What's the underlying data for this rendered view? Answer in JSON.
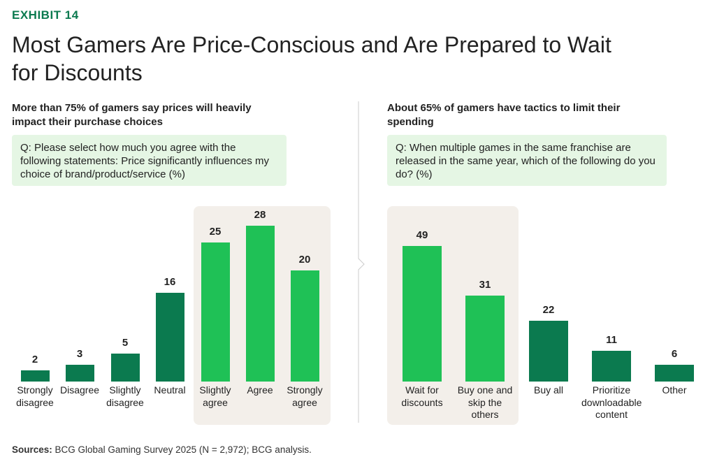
{
  "exhibit": "EXHIBIT 14",
  "title": "Most Gamers Are Price-Conscious and Are Prepared to Wait for Discounts",
  "sources_label": "Sources:",
  "sources": "BCG Global Gaming Survey 2025 (N = 2,972); BCG analysis.",
  "chart_data": [
    {
      "type": "bar",
      "subtitle": "More than 75% of gamers say prices will heavily impact their purchase choices",
      "question": "Q: Please select how much you agree with the following statements: Price significantly influences my choice of brand/product/service (%)",
      "categories": [
        "Strongly disagree",
        "Disagree",
        "Slightly disagree",
        "Neutral",
        "Slightly agree",
        "Agree",
        "Strongly agree"
      ],
      "values": [
        2,
        3,
        5,
        16,
        25,
        28,
        20
      ],
      "colors": [
        "#0b7a4f",
        "#0b7a4f",
        "#0b7a4f",
        "#0b7a4f",
        "#1fc156",
        "#1fc156",
        "#1fc156"
      ]
    },
    {
      "type": "bar",
      "subtitle": "About 65% of gamers have tactics to limit their spending",
      "question": "Q: When multiple games in the same franchise are released in the same year, which of the following do you do? (%)",
      "categories": [
        "Wait for discounts",
        "Buy one and skip the others",
        "Buy all",
        "Prioritize downloadable content",
        "Other"
      ],
      "values": [
        49,
        31,
        22,
        11,
        6
      ],
      "colors": [
        "#1fc156",
        "#1fc156",
        "#0b7a4f",
        "#0b7a4f",
        "#0b7a4f"
      ]
    }
  ]
}
